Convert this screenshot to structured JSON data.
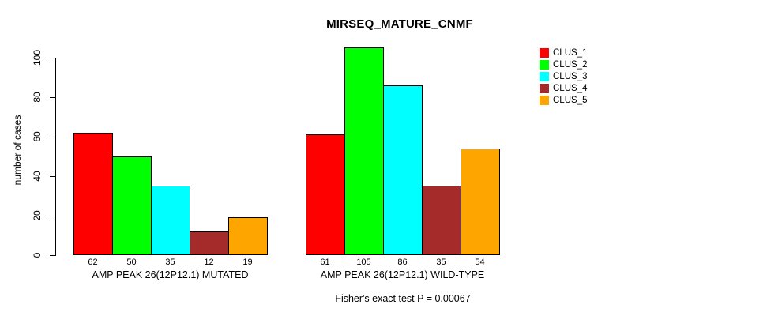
{
  "chart_data": {
    "type": "bar",
    "title": "MIRSEQ_MATURE_CNMF",
    "ylabel": "number of cases",
    "xlabel": "",
    "annotation": "Fisher's exact test P = 0.00067",
    "ylim": [
      0,
      100
    ],
    "yticks": [
      0,
      20,
      40,
      60,
      80,
      100
    ],
    "grid": false,
    "legend_position": "right",
    "series": [
      {
        "name": "CLUS_1",
        "color": "#ff0000"
      },
      {
        "name": "CLUS_2",
        "color": "#00ff00"
      },
      {
        "name": "CLUS_3",
        "color": "#00ffff"
      },
      {
        "name": "CLUS_4",
        "color": "#a52a2a"
      },
      {
        "name": "CLUS_5",
        "color": "#ffa500"
      }
    ],
    "groups": [
      {
        "label": "AMP PEAK 26(12P12.1) MUTATED",
        "values": [
          62,
          50,
          35,
          12,
          19
        ]
      },
      {
        "label": "AMP PEAK 26(12P12.1) WILD-TYPE",
        "values": [
          61,
          105,
          86,
          35,
          54
        ]
      }
    ]
  }
}
